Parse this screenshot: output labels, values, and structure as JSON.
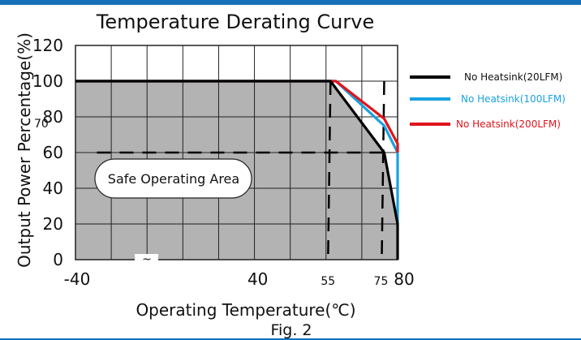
{
  "chart_data": {
    "type": "line",
    "title": "Temperature Derating Curve",
    "xlabel": "Operating Temperature(℃)",
    "ylabel": "Output Power Percentage(%)",
    "caption": "Fig. 2",
    "xlim": [
      -40,
      80
    ],
    "ylim": [
      0,
      120
    ],
    "y_ticks": [
      "0",
      "20",
      "40",
      "60",
      "80",
      "100",
      "120"
    ],
    "y_extra_tick": "70",
    "x_ticks": [
      {
        "value": -40,
        "label": "-40"
      },
      {
        "value": 40,
        "label": "40"
      },
      {
        "value": 55,
        "label": "55"
      },
      {
        "value": 75,
        "label": "75"
      },
      {
        "value": 80,
        "label": "80"
      }
    ],
    "x_marker_glyph": "~",
    "grid": true,
    "legend_position": "right",
    "region_label": "Safe Operating Area",
    "reference_lines": [
      {
        "type": "horizontal",
        "y": 60
      },
      {
        "type": "vertical",
        "x": 55
      },
      {
        "type": "vertical",
        "x": 75
      }
    ],
    "series": [
      {
        "name": "No Heatsink(20LFM)",
        "color": "#000000",
        "points": [
          [
            -40,
            100
          ],
          [
            55,
            100
          ],
          [
            75,
            60
          ],
          [
            80,
            20
          ],
          [
            80,
            0
          ]
        ]
      },
      {
        "name": "No Heatsink(100LFM)",
        "color": "#19a2e0",
        "points": [
          [
            -40,
            100
          ],
          [
            57,
            100
          ],
          [
            75,
            75
          ],
          [
            80,
            60
          ],
          [
            80,
            20
          ]
        ]
      },
      {
        "name": "No Heatsink(200LFM)",
        "color": "#e0141c",
        "points": [
          [
            -40,
            100
          ],
          [
            57,
            100
          ],
          [
            75,
            79
          ],
          [
            80,
            65
          ],
          [
            80,
            60
          ]
        ]
      }
    ]
  }
}
